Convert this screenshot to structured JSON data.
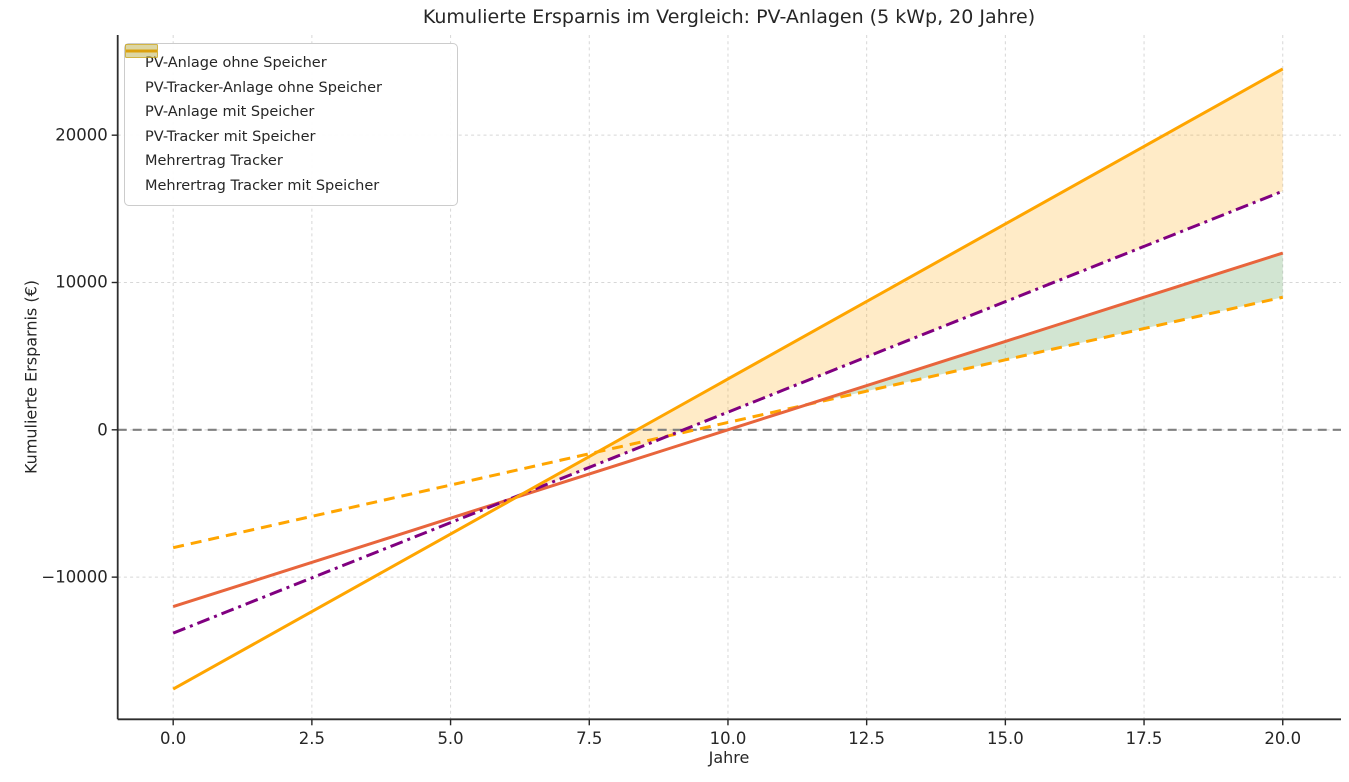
{
  "chart_data": {
    "type": "line",
    "title": "Kumulierte Ersparnis im Vergleich: PV-Anlagen (5 kWp, 20 Jahre)",
    "xlabel": "Jahre",
    "ylabel": "Kumulierte Ersparnis (€)",
    "x": [
      0,
      1,
      2,
      3,
      4,
      5,
      6,
      7,
      8,
      9,
      10,
      11,
      12,
      13,
      14,
      15,
      16,
      17,
      18,
      19,
      20
    ],
    "series": [
      {
        "name": "PV-Anlage ohne Speicher",
        "color": "#FFA500",
        "style": "dashed",
        "values": [
          -8000,
          -7150,
          -6300,
          -5450,
          -4600,
          -3750,
          -2900,
          -2050,
          -1200,
          -350,
          500,
          1350,
          2200,
          3050,
          3900,
          4750,
          5600,
          6450,
          7300,
          8150,
          9000
        ]
      },
      {
        "name": "PV-Tracker-Anlage ohne Speicher",
        "color": "#E8653C",
        "style": "solid",
        "values": [
          -12000,
          -10800,
          -9600,
          -8400,
          -7200,
          -6000,
          -4800,
          -3600,
          -2400,
          -1200,
          0,
          1200,
          2400,
          3600,
          4800,
          6000,
          7200,
          8400,
          9600,
          10800,
          12000
        ]
      },
      {
        "name": "PV-Anlage mit Speicher",
        "color": "#800080",
        "style": "dashdot",
        "values": [
          -13800,
          -12300,
          -10800,
          -9300,
          -7800,
          -6300,
          -4800,
          -3300,
          -1800,
          -300,
          1200,
          2700,
          4200,
          5700,
          7200,
          8700,
          10200,
          11700,
          13200,
          14700,
          16200
        ]
      },
      {
        "name": "PV-Tracker mit Speicher",
        "color": "#FFA500",
        "style": "solid",
        "values": [
          -17600,
          -15495,
          -13390,
          -11285,
          -9180,
          -7075,
          -4970,
          -2865,
          -760,
          1345,
          3450,
          5555,
          7660,
          9765,
          11870,
          13975,
          16080,
          18185,
          20290,
          22395,
          24500
        ]
      }
    ],
    "fills": [
      {
        "name": "Mehrertrag Tracker",
        "upper_series": 1,
        "lower_series": 0,
        "fill_color": "rgba(76,153,76,0.25)",
        "edge_color": "rgba(76,153,76,0.5)"
      },
      {
        "name": "Mehrertrag Tracker mit Speicher",
        "upper_series": 3,
        "lower_series": 2,
        "fill_color": "rgba(255,165,0,0.22)",
        "edge_color": "rgba(255,165,0,0.5)"
      }
    ],
    "zero_line": {
      "value": 0,
      "color": "#808080",
      "style": "dashed"
    },
    "x_ticks": [
      "0.0",
      "2.5",
      "5.0",
      "7.5",
      "10.0",
      "12.5",
      "15.0",
      "17.5",
      "20.0"
    ],
    "x_tick_values": [
      0,
      2.5,
      5,
      7.5,
      10,
      12.5,
      15,
      17.5,
      20
    ],
    "y_ticks": [
      "−10000",
      "0",
      "10000",
      "20000"
    ],
    "y_tick_values": [
      -10000,
      0,
      10000,
      20000
    ],
    "xlim": [
      -1.0,
      21.05
    ],
    "ylim": [
      -19650,
      26800
    ],
    "grid": true,
    "legend_position": "upper left"
  }
}
